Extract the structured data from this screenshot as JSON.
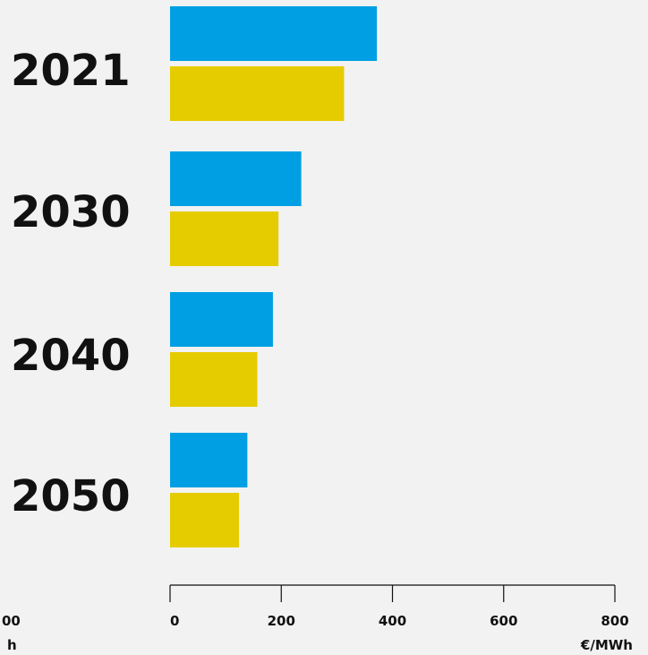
{
  "chart_data": {
    "type": "bar",
    "orientation": "horizontal",
    "categories": [
      "2021",
      "2030",
      "2040",
      "2050"
    ],
    "series": [
      {
        "color": "#009fe3",
        "values": [
          372,
          236,
          185,
          139
        ]
      },
      {
        "color": "#e5cc00",
        "values": [
          313,
          195,
          157,
          124
        ]
      }
    ],
    "xlim": [
      0,
      800
    ],
    "x_ticks": [
      "0",
      "200",
      "400",
      "600",
      "800"
    ],
    "x_unit": "€/MWh",
    "clipped_left": {
      "tick_fragment": "00",
      "unit_fragment": "h"
    },
    "grid": false,
    "background": "#f2f2f2"
  }
}
